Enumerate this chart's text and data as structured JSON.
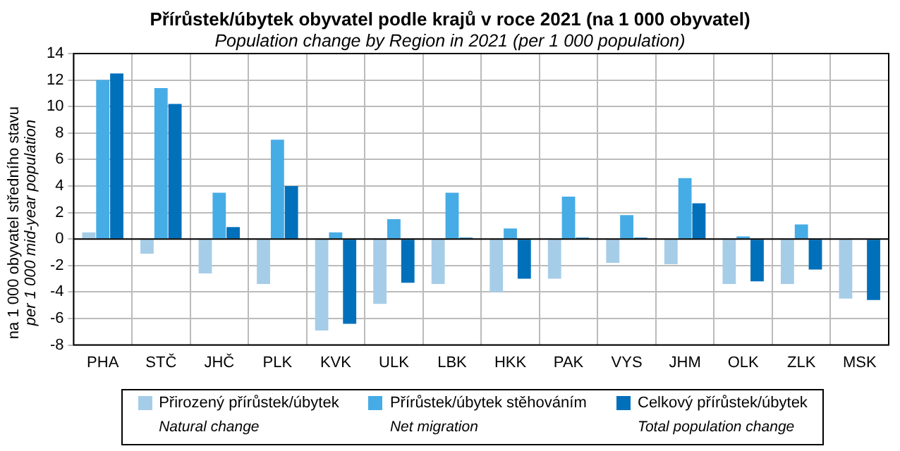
{
  "chart_data": {
    "type": "bar",
    "title": "Přírůstek/úbytek obyvatel podle krajů v roce 2021 (na 1 000 obyvatel)",
    "subtitle": "Population change by Region in 2021 (per 1 000 population)",
    "ylabel": "na 1 000 obyvatel středního stavu\nper 1 000 mid-year population",
    "categories": [
      "PHA",
      "STČ",
      "JHČ",
      "PLK",
      "KVK",
      "ULK",
      "LBK",
      "HKK",
      "PAK",
      "VYS",
      "JHM",
      "OLK",
      "ZLK",
      "MSK"
    ],
    "series": [
      {
        "name": "Přirozený přírůstek/úbytek\nNatural change",
        "color": "#a6cde8",
        "values": [
          0.5,
          -1.1,
          -2.6,
          -3.4,
          -6.9,
          -4.9,
          -3.4,
          -4.0,
          -3.0,
          -1.8,
          -1.9,
          -3.4,
          -3.4,
          -4.5
        ]
      },
      {
        "name": "Přírůstek/úbytek stěhováním\nNet migration",
        "color": "#46ace5",
        "values": [
          12.0,
          11.4,
          3.5,
          7.5,
          0.5,
          1.5,
          3.5,
          0.8,
          3.2,
          1.8,
          4.6,
          0.2,
          1.1,
          0.0
        ]
      },
      {
        "name": "Celkový přírůstek/úbytek\nTotal population change",
        "color": "#0070bb",
        "values": [
          12.5,
          10.2,
          0.9,
          4.0,
          -6.4,
          -3.3,
          0.1,
          -3.0,
          0.1,
          0.1,
          2.7,
          -3.2,
          -2.3,
          -4.6
        ]
      }
    ],
    "ylim": [
      -8,
      14
    ],
    "yticks": [
      -8,
      -6,
      -4,
      -2,
      0,
      2,
      4,
      6,
      8,
      10,
      12,
      14
    ],
    "grid": true,
    "legend": "bottom"
  }
}
